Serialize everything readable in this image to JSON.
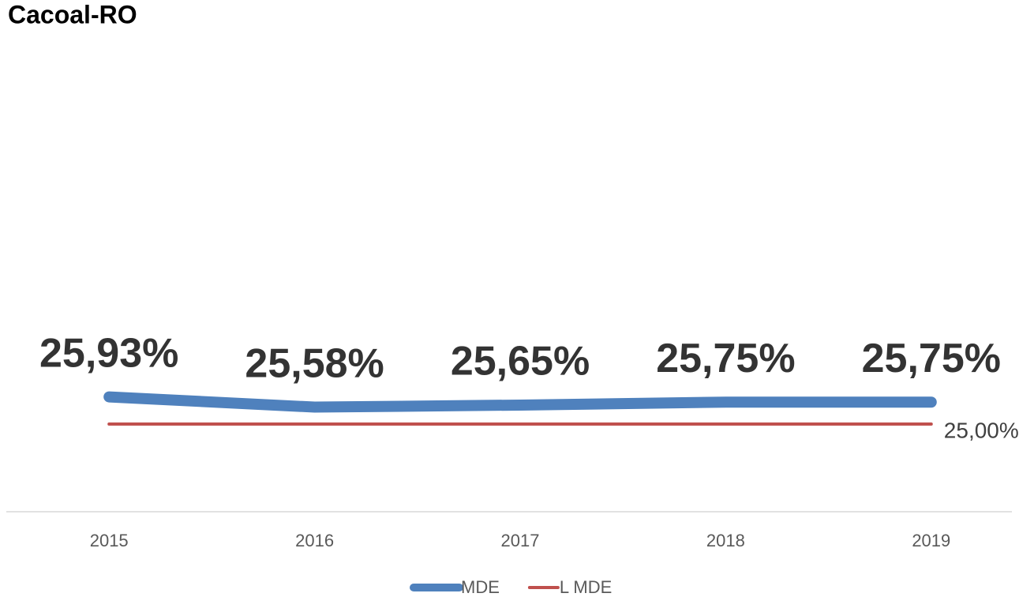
{
  "chart_data": {
    "type": "line",
    "title": "Cacoal-RO",
    "categories": [
      "2015",
      "2016",
      "2017",
      "2018",
      "2019"
    ],
    "series": [
      {
        "name": "MDE",
        "color": "#4f81bd",
        "values": [
          25.93,
          25.58,
          25.65,
          25.75,
          25.75
        ],
        "value_labels": [
          "25,93%",
          "25,58%",
          "25,65%",
          "25,75%",
          "25,75%"
        ]
      },
      {
        "name": "L MDE",
        "color": "#c0504d",
        "values": [
          25,
          25,
          25,
          25,
          25
        ],
        "value_labels": [
          null,
          null,
          null,
          null,
          "25,00%"
        ]
      }
    ],
    "ylim": [
      22,
      38
    ],
    "legend": "bottom"
  }
}
